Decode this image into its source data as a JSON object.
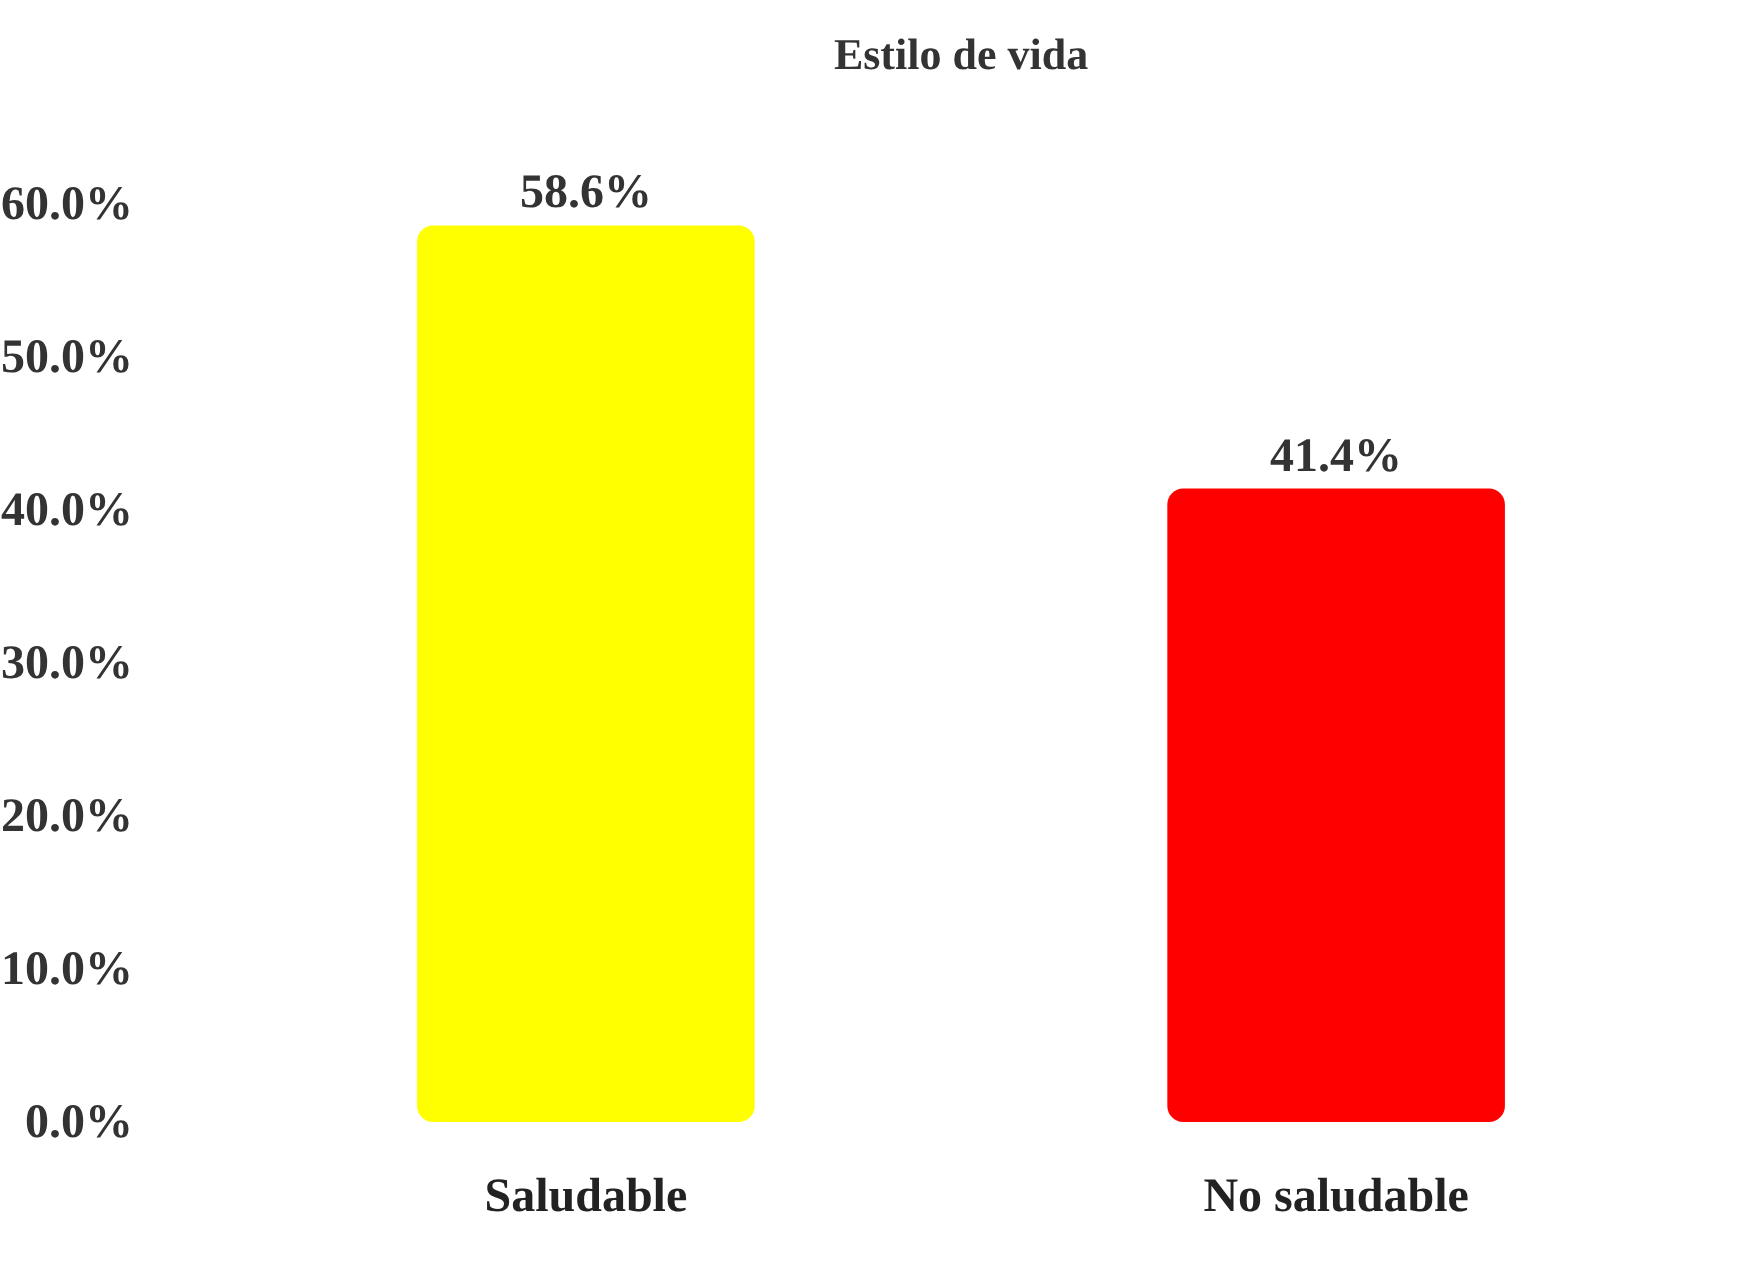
{
  "chart_data": {
    "type": "bar",
    "title": "Estilo de vida",
    "categories": [
      "Saludable",
      "No saludable"
    ],
    "values": [
      58.6,
      41.4
    ],
    "colors": [
      "#ffff00",
      "#ff0000"
    ],
    "value_labels": [
      "58.6%",
      "41.4%"
    ],
    "ylim": [
      0,
      60
    ],
    "yticks": [
      {
        "value": 0,
        "label": "0.0%"
      },
      {
        "value": 10,
        "label": "10.0%"
      },
      {
        "value": 20,
        "label": "20.0%"
      },
      {
        "value": 30,
        "label": "30.0%"
      },
      {
        "value": 40,
        "label": "40.0%"
      },
      {
        "value": 50,
        "label": "50.0%"
      },
      {
        "value": 60,
        "label": "60.0%"
      }
    ],
    "grid": false,
    "legend": false
  }
}
